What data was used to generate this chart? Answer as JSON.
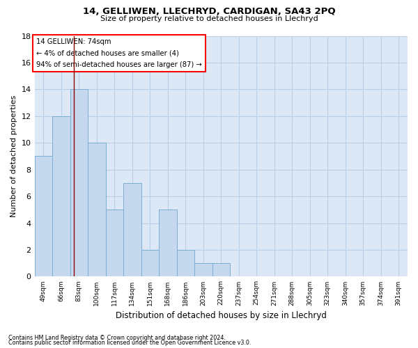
{
  "title1": "14, GELLIWEN, LLECHRYD, CARDIGAN, SA43 2PQ",
  "title2": "Size of property relative to detached houses in Llechryd",
  "xlabel": "Distribution of detached houses by size in Llechryd",
  "ylabel": "Number of detached properties",
  "categories": [
    "49sqm",
    "66sqm",
    "83sqm",
    "100sqm",
    "117sqm",
    "134sqm",
    "151sqm",
    "168sqm",
    "186sqm",
    "203sqm",
    "220sqm",
    "237sqm",
    "254sqm",
    "271sqm",
    "288sqm",
    "305sqm",
    "323sqm",
    "340sqm",
    "357sqm",
    "374sqm",
    "391sqm"
  ],
  "values": [
    9,
    12,
    14,
    10,
    5,
    7,
    2,
    5,
    2,
    1,
    1,
    0,
    0,
    0,
    0,
    0,
    0,
    0,
    0,
    0,
    0
  ],
  "bar_color": "#c5d8ee",
  "bar_edgecolor": "#7badd4",
  "bar_linewidth": 0.7,
  "annotation_box_text": "14 GELLIWEN: 74sqm\n← 4% of detached houses are smaller (4)\n94% of semi-detached houses are larger (87) →",
  "red_line_x": 1.72,
  "ylim": [
    0,
    18
  ],
  "yticks": [
    0,
    2,
    4,
    6,
    8,
    10,
    12,
    14,
    16,
    18
  ],
  "plot_bg_color": "#dce8f5",
  "background_color": "#ffffff",
  "grid_color": "#b8cfe8",
  "footer1": "Contains HM Land Registry data © Crown copyright and database right 2024.",
  "footer2": "Contains public sector information licensed under the Open Government Licence v3.0."
}
